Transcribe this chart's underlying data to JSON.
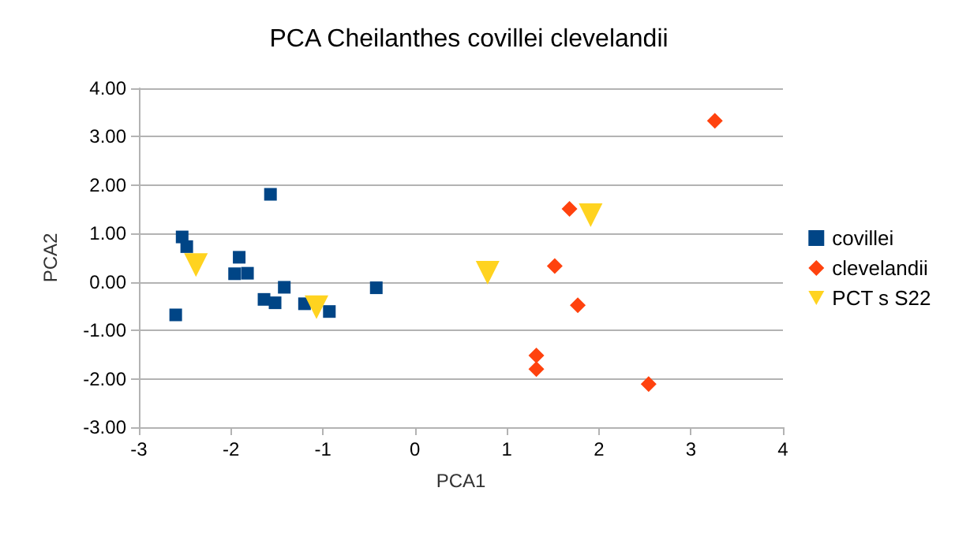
{
  "chart_data": {
    "type": "scatter",
    "title": "PCA Cheilanthes covillei clevelandii",
    "xlabel": "PCA1",
    "ylabel": "PCA2",
    "xlim": [
      -3,
      4
    ],
    "xticks": [
      -3,
      -2,
      -1,
      0,
      1,
      2,
      3,
      4
    ],
    "ylim": [
      -3,
      4
    ],
    "yticks": [
      {
        "value": -3,
        "label": "-3.00"
      },
      {
        "value": -2,
        "label": "-2.00"
      },
      {
        "value": -1,
        "label": "-1.00"
      },
      {
        "value": 0,
        "label": "0.00"
      },
      {
        "value": 1,
        "label": "1.00"
      },
      {
        "value": 2,
        "label": "2.00"
      },
      {
        "value": 3,
        "label": "3.00"
      },
      {
        "value": 4,
        "label": "4.00"
      }
    ],
    "grid": "y",
    "legend": "right",
    "series": [
      {
        "name": "covillei",
        "color": "#004586",
        "marker": "square",
        "x": [
          -2.6,
          -2.53,
          -2.48,
          -1.57,
          -1.91,
          -1.96,
          -1.82,
          -1.42,
          -1.64,
          -1.52,
          -1.2,
          -0.93,
          -0.42
        ],
        "values": [
          -0.68,
          0.93,
          0.73,
          1.81,
          0.51,
          0.17,
          0.18,
          -0.11,
          -0.36,
          -0.43,
          -0.45,
          -0.61,
          -0.12
        ]
      },
      {
        "name": "clevelandii",
        "color": "#ff420e",
        "marker": "diamond",
        "x": [
          3.26,
          1.68,
          1.52,
          1.77,
          1.32,
          1.32,
          2.54
        ],
        "values": [
          3.33,
          1.51,
          0.33,
          -0.48,
          -1.52,
          -1.8,
          -2.11
        ]
      },
      {
        "name": "PCT s S22",
        "color": "#ffd320",
        "marker": "triangle-down",
        "x": [
          -2.38,
          -1.07,
          0.79,
          1.91
        ],
        "values": [
          0.35,
          -0.52,
          0.19,
          1.38
        ]
      }
    ]
  }
}
